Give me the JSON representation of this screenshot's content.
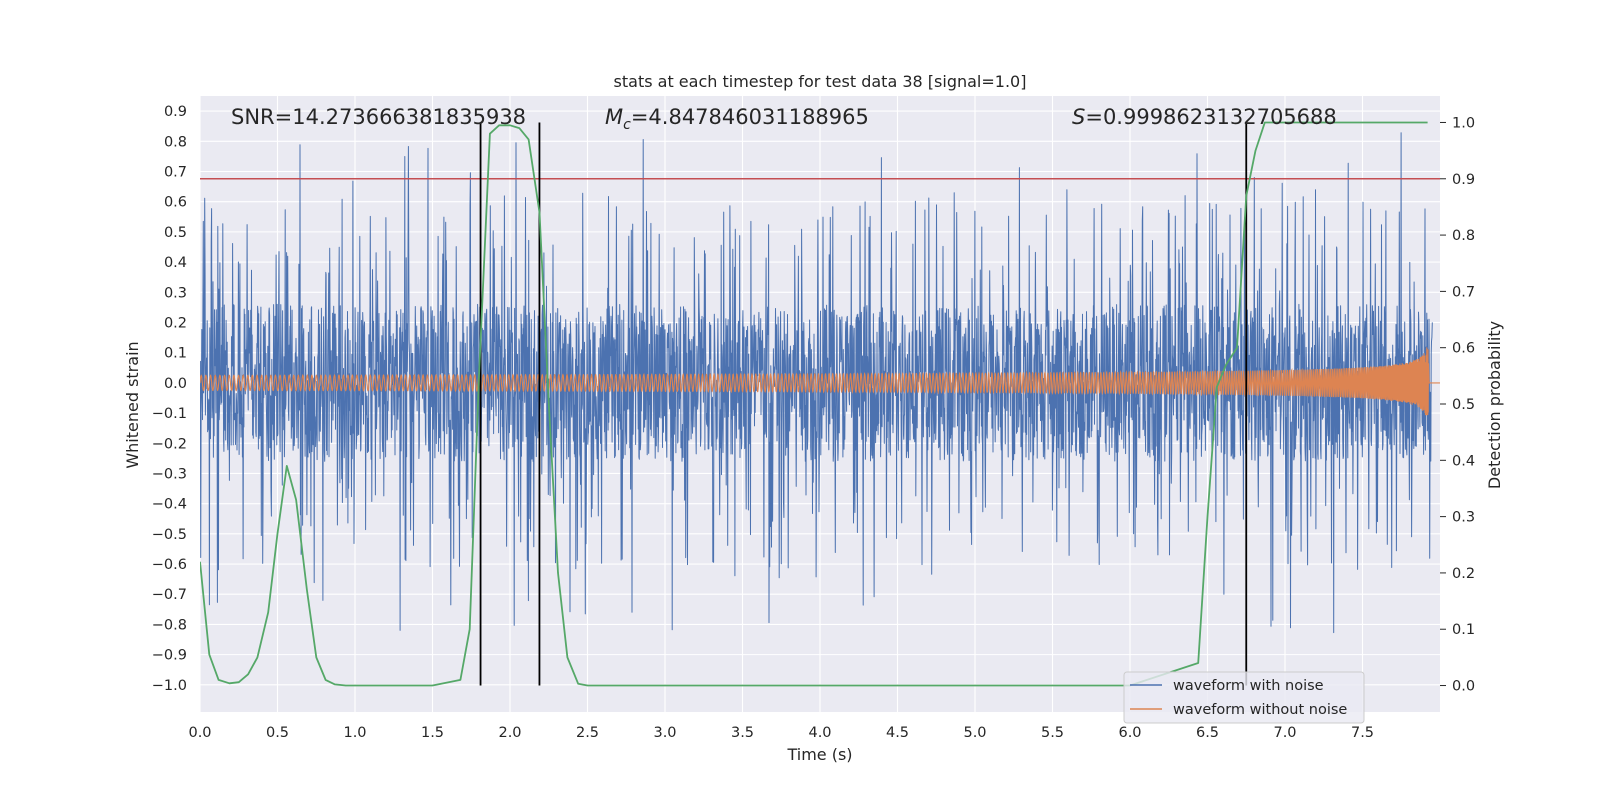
{
  "chart_data": {
    "type": "line",
    "title": "stats at each timestep for test data 38 [signal=1.0]",
    "xlabel": "Time (s)",
    "ylabel": "Whitened strain",
    "ylabel_right": "Detection probability",
    "xlim": [
      0.0,
      8.0
    ],
    "ylim": [
      -1.09,
      0.95
    ],
    "ylim_right": [
      -0.047,
      1.047
    ],
    "x_ticks": [
      0.0,
      0.5,
      1.0,
      1.5,
      2.0,
      2.5,
      3.0,
      3.5,
      4.0,
      4.5,
      5.0,
      5.5,
      6.0,
      6.5,
      7.0,
      7.5
    ],
    "x_tick_labels": [
      "0.0",
      "0.5",
      "1.0",
      "1.5",
      "2.0",
      "2.5",
      "3.0",
      "3.5",
      "4.0",
      "4.5",
      "5.0",
      "5.5",
      "6.0",
      "6.5",
      "7.0",
      "7.5"
    ],
    "y_ticks": [
      0.9,
      0.8,
      0.7,
      0.6,
      0.5,
      0.4,
      0.3,
      0.2,
      0.1,
      0.0,
      -0.1,
      -0.2,
      -0.3,
      -0.4,
      -0.5,
      -0.6,
      -0.7,
      -0.8,
      -0.9,
      -1.0
    ],
    "y_tick_labels": [
      "0.9",
      "0.8",
      "0.7",
      "0.6",
      "0.5",
      "0.4",
      "0.3",
      "0.2",
      "0.1",
      "0.0",
      "−0.1",
      "−0.2",
      "−0.3",
      "−0.4",
      "−0.5",
      "−0.6",
      "−0.7",
      "−0.8",
      "−0.9",
      "−1.0"
    ],
    "y2_ticks": [
      1.0,
      0.9,
      0.8,
      0.7,
      0.6,
      0.5,
      0.4,
      0.3,
      0.2,
      0.1,
      0.0
    ],
    "y2_tick_labels": [
      "1.0",
      "0.9",
      "0.8",
      "0.7",
      "0.6",
      "0.5",
      "0.4",
      "0.3",
      "0.2",
      "0.1",
      "0.0"
    ],
    "annotations": {
      "snr": "SNR=14.273666381835938",
      "mc_symbol": "M",
      "mc_sub": "c",
      "mc_value": "=4.847846031188965",
      "s_symbol": "S",
      "s_value": "=0.9998623132705688"
    },
    "threshold": {
      "value": 0.9,
      "axis": "right",
      "color": "#c44e52"
    },
    "vertical_lines": [
      1.81,
      2.19,
      6.75
    ],
    "vertical_line_range": [
      0.0,
      1.0
    ],
    "series": [
      {
        "name": "waveform with noise",
        "color": "#4c72b0",
        "axis": "left",
        "kind": "noise",
        "duration": 8.0,
        "envelope_max": 0.86,
        "envelope_min": -1.0,
        "base_amplitude": 0.26,
        "t_end": 7.95
      },
      {
        "name": "waveform without noise",
        "color": "#dd8452",
        "axis": "left",
        "kind": "chirp",
        "t_merge": 7.93,
        "amplitude_start": 0.025,
        "amplitude_peak": 0.32,
        "frequency_start_hz": 33
      },
      {
        "name": "detection probability",
        "color": "#55a868",
        "axis": "right",
        "x": [
          0.0,
          0.06,
          0.12,
          0.19,
          0.25,
          0.31,
          0.37,
          0.44,
          0.5,
          0.56,
          0.62,
          0.69,
          0.75,
          0.81,
          0.87,
          0.94,
          1.0,
          1.5,
          1.68,
          1.74,
          1.8,
          1.87,
          1.93,
          2.0,
          2.06,
          2.12,
          2.19,
          2.25,
          2.31,
          2.37,
          2.44,
          2.5,
          3.0,
          4.0,
          5.0,
          6.0,
          6.44,
          6.5,
          6.56,
          6.62,
          6.69,
          6.75,
          6.81,
          6.87,
          6.94,
          7.0,
          7.5,
          7.92
        ],
        "y": [
          0.22,
          0.055,
          0.01,
          0.004,
          0.006,
          0.02,
          0.05,
          0.13,
          0.27,
          0.39,
          0.33,
          0.17,
          0.05,
          0.01,
          0.002,
          0.0,
          0.0,
          0.0,
          0.01,
          0.1,
          0.55,
          0.98,
          0.995,
          0.995,
          0.99,
          0.97,
          0.84,
          0.5,
          0.2,
          0.05,
          0.003,
          0.0,
          0.0,
          0.0,
          0.0,
          0.0,
          0.04,
          0.3,
          0.53,
          0.57,
          0.6,
          0.87,
          0.95,
          1.0,
          1.0,
          1.0,
          1.0,
          1.0
        ]
      }
    ],
    "legend": {
      "position": "lower-right",
      "entries": [
        {
          "label": "waveform with noise",
          "color": "#4c72b0"
        },
        {
          "label": "waveform without noise",
          "color": "#dd8452"
        }
      ]
    },
    "style": {
      "plot_background": "#eaeaf2",
      "grid_color": "#ffffff",
      "vline_color": "#000000"
    }
  }
}
